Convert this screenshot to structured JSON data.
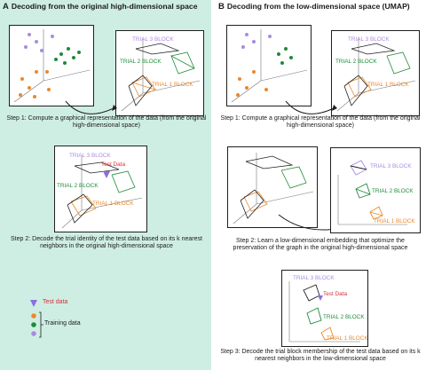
{
  "panel_a": {
    "letter": "A",
    "title": "Decoding from the original high-dimensional space",
    "step1": "Step 1: Compute a graphical representation of the data (from the original high-dimensional space)",
    "step2": "Step 2: Decode the trial identity of the test data based on its k nearest neighbors in the original high-dimensional space"
  },
  "panel_b": {
    "letter": "B",
    "title": "Decoding from the low-dimensional space (UMAP)",
    "step1": "Step 1: Compute a graphical representation of the data (from the original high-dimensional space)",
    "step2": "Step 2: Learn a low-dimensional embedding that optimize the preservation of the graph in the original high-dimensional space",
    "step3": "Step 3: Decode the trial block membership of the test data based on its k nearest neighbors in the low-dimensional space"
  },
  "labels": {
    "trial1": "TRIAL 1 BLOCK",
    "trial2": "TRIAL 2 BLOCK",
    "trial3": "TRIAL 3 BLOCK",
    "test": "Test Data"
  },
  "legend": {
    "test": "Test data",
    "training": "Training data"
  },
  "colors": {
    "panel_a_bg": "#cfeee3",
    "trial1": "#e8892c",
    "trial2": "#1e8a3a",
    "trial3": "#a98be0",
    "test": "#8b6fe0",
    "test_text": "#d2313c"
  }
}
